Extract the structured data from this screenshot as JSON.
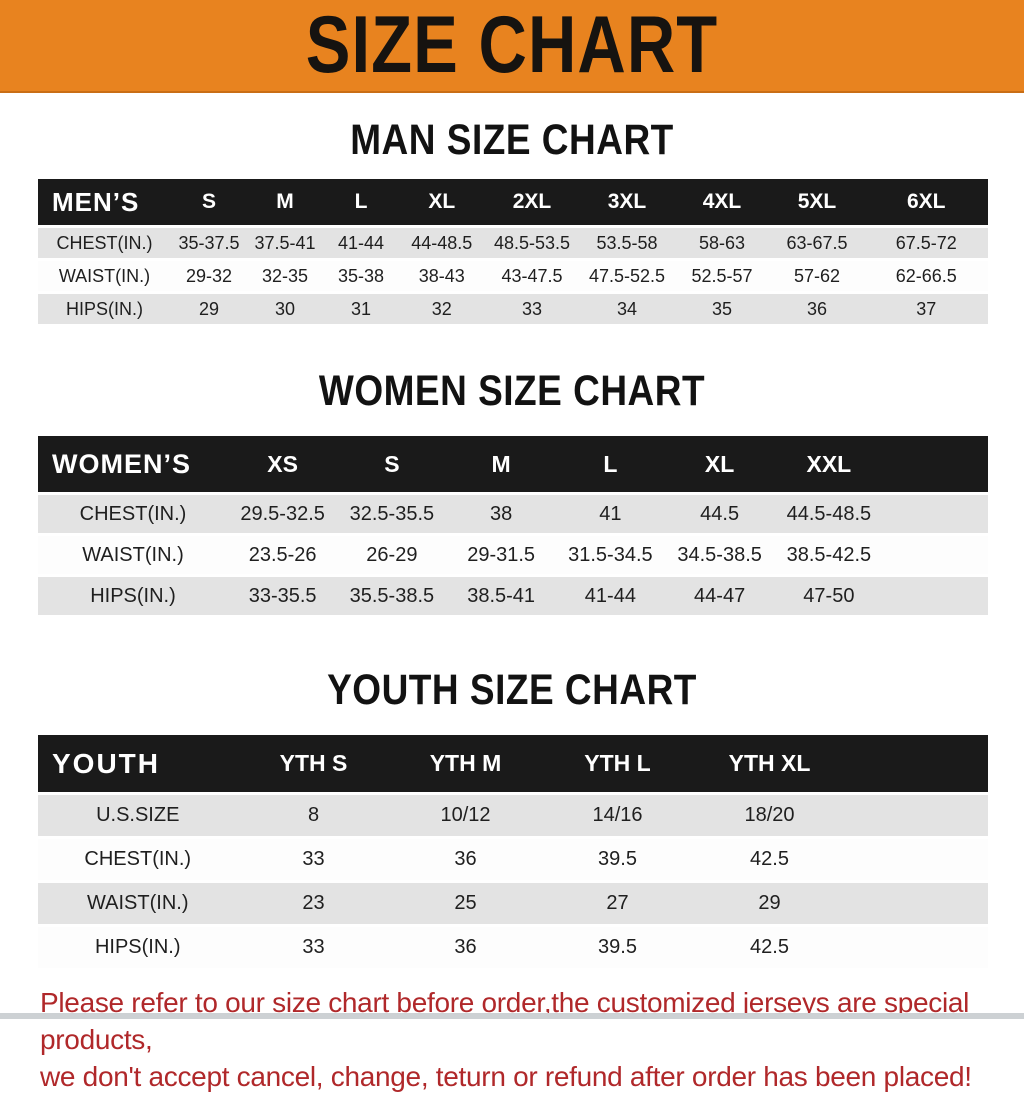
{
  "banner": {
    "title": "SIZE CHART",
    "bg_color": "#E8831F",
    "text_color": "#161310"
  },
  "colors": {
    "table_header_bg": "#1A1A1A",
    "row_gray": "#E3E3E3",
    "row_white": "#FDFDFD",
    "disclaimer_red": "#B0282A"
  },
  "sections": [
    {
      "heading": "MAN SIZE CHART",
      "table": {
        "header_label": "MEN’S",
        "columns": [
          "S",
          "M",
          "L",
          "XL",
          "2XL",
          "3XL",
          "4XL",
          "5XL",
          "6XL"
        ],
        "rows": [
          {
            "label": "CHEST(IN.)",
            "values": [
              "35-37.5",
              "37.5-41",
              "41-44",
              "44-48.5",
              "48.5-53.5",
              "53.5-58",
              "58-63",
              "63-67.5",
              "67.5-72"
            ]
          },
          {
            "label": "WAIST(IN.)",
            "values": [
              "29-32",
              "32-35",
              "35-38",
              "38-43",
              "43-47.5",
              "47.5-52.5",
              "52.5-57",
              "57-62",
              "62-66.5"
            ]
          },
          {
            "label": "HIPS(IN.)",
            "values": [
              "29",
              "30",
              "31",
              "32",
              "33",
              "34",
              "35",
              "36",
              "37"
            ]
          }
        ]
      }
    },
    {
      "heading": "WOMEN SIZE CHART",
      "table": {
        "header_label": "WOMEN’S",
        "columns": [
          "XS",
          "S",
          "M",
          "L",
          "XL",
          "XXL"
        ],
        "rows": [
          {
            "label": "CHEST(IN.)",
            "values": [
              "29.5-32.5",
              "32.5-35.5",
              "38",
              "41",
              "44.5",
              "44.5-48.5"
            ]
          },
          {
            "label": "WAIST(IN.)",
            "values": [
              "23.5-26",
              "26-29",
              "29-31.5",
              "31.5-34.5",
              "34.5-38.5",
              "38.5-42.5"
            ]
          },
          {
            "label": "HIPS(IN.)",
            "values": [
              "33-35.5",
              "35.5-38.5",
              "38.5-41",
              "41-44",
              "44-47",
              "47-50"
            ]
          }
        ]
      }
    },
    {
      "heading": "YOUTH SIZE CHART",
      "table": {
        "header_label": "YOUTH",
        "columns": [
          "YTH S",
          "YTH M",
          "YTH L",
          "YTH XL"
        ],
        "rows": [
          {
            "label": "U.S.SIZE",
            "values": [
              "8",
              "10/12",
              "14/16",
              "18/20"
            ]
          },
          {
            "label": "CHEST(IN.)",
            "values": [
              "33",
              "36",
              "39.5",
              "42.5"
            ]
          },
          {
            "label": "WAIST(IN.)",
            "values": [
              "23",
              "25",
              "27",
              "29"
            ]
          },
          {
            "label": "HIPS(IN.)",
            "values": [
              "33",
              "36",
              "39.5",
              "42.5"
            ]
          }
        ]
      }
    }
  ],
  "footer": {
    "line1": "Please refer to our size chart before order,the customized jerseys are special products,",
    "line2": "we don't accept cancel, change, teturn or refund after order has been placed!"
  }
}
